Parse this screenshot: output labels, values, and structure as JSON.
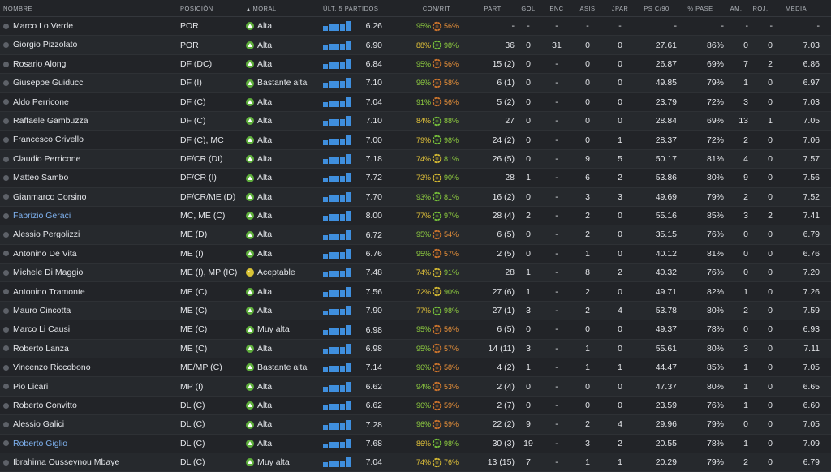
{
  "colors": {
    "accent_link": "#7fb2f0",
    "bar_blue": "#3f8fde",
    "morale_green": "#5fb03c",
    "morale_yellow": "#d8c335",
    "condition_green": "#8fcc40",
    "condition_yellow": "#e1c23a",
    "fitness_orange": "#e8913a",
    "ring_green": "#78c43a",
    "ring_yellow": "#d9bd32",
    "ring_orange": "#d2772c"
  },
  "table": {
    "headers": {
      "nombre": "NOMBRE",
      "posicion": "POSICIÓN",
      "moral": "MORAL",
      "ultimos": "ÚLT. 5 PARTIDOS",
      "conrit": "CON/RIT",
      "part": "PART",
      "gol": "GOL",
      "enc": "ENC",
      "asis": "ASIS",
      "jpar": "JPAR",
      "psc90": "PS C/90",
      "pase": "% PASE",
      "am": "AM.",
      "roj": "ROJ.",
      "media": "MEDIA"
    },
    "sort_icon": "sort-ascending-icon",
    "rows": [
      {
        "name": "Marco Lo Verde",
        "pos": "POR",
        "moral": "Alta",
        "moral_color": "green",
        "form": [
          0.5,
          0.7,
          0.7,
          0.7,
          1.0
        ],
        "avg": "6.26",
        "cond": "95%",
        "cond_c": "g",
        "fit": "56%",
        "fit_c": "o",
        "ring": "orange",
        "part": "-",
        "gol": "-",
        "enc": "-",
        "asis": "-",
        "jpar": "-",
        "ps": "-",
        "pase": "-",
        "am": "-",
        "roj": "-",
        "media": "-",
        "link": false
      },
      {
        "name": "Giorgio Pizzolato",
        "pos": "POR",
        "moral": "Alta",
        "moral_color": "green",
        "form": [
          0.5,
          0.7,
          0.7,
          0.7,
          1.0
        ],
        "avg": "6.90",
        "cond": "88%",
        "cond_c": "y",
        "fit": "98%",
        "fit_c": "g",
        "ring": "green",
        "part": "36",
        "gol": "0",
        "enc": "31",
        "asis": "0",
        "jpar": "0",
        "ps": "27.61",
        "pase": "86%",
        "am": "0",
        "roj": "0",
        "media": "7.03",
        "link": false
      },
      {
        "name": "Rosario Alongi",
        "pos": "DF (DC)",
        "moral": "Alta",
        "moral_color": "green",
        "form": [
          0.5,
          0.7,
          0.7,
          0.7,
          1.0
        ],
        "avg": "6.84",
        "cond": "95%",
        "cond_c": "g",
        "fit": "56%",
        "fit_c": "o",
        "ring": "orange",
        "part": "15 (2)",
        "gol": "0",
        "enc": "-",
        "asis": "0",
        "jpar": "0",
        "ps": "26.87",
        "pase": "69%",
        "am": "7",
        "roj": "2",
        "media": "6.86",
        "link": false
      },
      {
        "name": "Giuseppe Guiducci",
        "pos": "DF (I)",
        "moral": "Bastante alta",
        "moral_color": "green",
        "form": [
          0.5,
          0.7,
          0.7,
          0.7,
          1.0
        ],
        "avg": "7.10",
        "cond": "96%",
        "cond_c": "g",
        "fit": "58%",
        "fit_c": "o",
        "ring": "orange",
        "part": "6 (1)",
        "gol": "0",
        "enc": "-",
        "asis": "0",
        "jpar": "0",
        "ps": "49.85",
        "pase": "79%",
        "am": "1",
        "roj": "0",
        "media": "6.97",
        "link": false
      },
      {
        "name": "Aldo Perricone",
        "pos": "DF (C)",
        "moral": "Alta",
        "moral_color": "green",
        "form": [
          0.5,
          0.7,
          0.7,
          0.7,
          1.0
        ],
        "avg": "7.04",
        "cond": "91%",
        "cond_c": "g",
        "fit": "56%",
        "fit_c": "o",
        "ring": "orange",
        "part": "5 (2)",
        "gol": "0",
        "enc": "-",
        "asis": "0",
        "jpar": "0",
        "ps": "23.79",
        "pase": "72%",
        "am": "3",
        "roj": "0",
        "media": "7.03",
        "link": false
      },
      {
        "name": "Raffaele Gambuzza",
        "pos": "DF (C)",
        "moral": "Alta",
        "moral_color": "green",
        "form": [
          0.5,
          0.7,
          0.7,
          0.7,
          1.0
        ],
        "avg": "7.10",
        "cond": "84%",
        "cond_c": "y",
        "fit": "88%",
        "fit_c": "g",
        "ring": "green",
        "part": "27",
        "gol": "0",
        "enc": "-",
        "asis": "0",
        "jpar": "0",
        "ps": "28.84",
        "pase": "69%",
        "am": "13",
        "roj": "1",
        "media": "7.05",
        "link": false
      },
      {
        "name": "Francesco Crivello",
        "pos": "DF (C), MC",
        "moral": "Alta",
        "moral_color": "green",
        "form": [
          0.5,
          0.7,
          0.7,
          0.7,
          1.0
        ],
        "avg": "7.00",
        "cond": "79%",
        "cond_c": "y",
        "fit": "98%",
        "fit_c": "g",
        "ring": "green",
        "part": "24 (2)",
        "gol": "0",
        "enc": "-",
        "asis": "0",
        "jpar": "1",
        "ps": "28.37",
        "pase": "72%",
        "am": "2",
        "roj": "0",
        "media": "7.06",
        "link": false
      },
      {
        "name": "Claudio Perricone",
        "pos": "DF/CR (DI)",
        "moral": "Alta",
        "moral_color": "green",
        "form": [
          0.5,
          0.7,
          0.7,
          0.7,
          1.0
        ],
        "avg": "7.18",
        "cond": "74%",
        "cond_c": "y",
        "fit": "81%",
        "fit_c": "g",
        "ring": "yellow",
        "part": "26 (5)",
        "gol": "0",
        "enc": "-",
        "asis": "9",
        "jpar": "5",
        "ps": "50.17",
        "pase": "81%",
        "am": "4",
        "roj": "0",
        "media": "7.57",
        "link": false
      },
      {
        "name": "Matteo Sambo",
        "pos": "DF/CR (I)",
        "moral": "Alta",
        "moral_color": "green",
        "form": [
          0.5,
          0.7,
          0.7,
          0.7,
          1.0
        ],
        "avg": "7.72",
        "cond": "73%",
        "cond_c": "y",
        "fit": "90%",
        "fit_c": "g",
        "ring": "yellow",
        "part": "28",
        "gol": "1",
        "enc": "-",
        "asis": "6",
        "jpar": "2",
        "ps": "53.86",
        "pase": "80%",
        "am": "9",
        "roj": "0",
        "media": "7.56",
        "link": false
      },
      {
        "name": "Gianmarco Corsino",
        "pos": "DF/CR/ME (D)",
        "moral": "Alta",
        "moral_color": "green",
        "form": [
          0.5,
          0.7,
          0.7,
          0.7,
          1.0
        ],
        "avg": "7.70",
        "cond": "93%",
        "cond_c": "g",
        "fit": "81%",
        "fit_c": "g",
        "ring": "green",
        "part": "16 (2)",
        "gol": "0",
        "enc": "-",
        "asis": "3",
        "jpar": "3",
        "ps": "49.69",
        "pase": "79%",
        "am": "2",
        "roj": "0",
        "media": "7.52",
        "link": false
      },
      {
        "name": "Fabrizio Geraci",
        "pos": "MC, ME (C)",
        "moral": "Alta",
        "moral_color": "green",
        "form": [
          0.5,
          0.7,
          0.7,
          0.7,
          1.0
        ],
        "avg": "8.00",
        "cond": "77%",
        "cond_c": "y",
        "fit": "97%",
        "fit_c": "g",
        "ring": "green",
        "part": "28 (4)",
        "gol": "2",
        "enc": "-",
        "asis": "2",
        "jpar": "0",
        "ps": "55.16",
        "pase": "85%",
        "am": "3",
        "roj": "2",
        "media": "7.41",
        "link": true
      },
      {
        "name": "Alessio Pergolizzi",
        "pos": "ME (D)",
        "moral": "Alta",
        "moral_color": "green",
        "form": [
          0.5,
          0.7,
          0.7,
          0.7,
          1.0
        ],
        "avg": "6.72",
        "cond": "95%",
        "cond_c": "g",
        "fit": "54%",
        "fit_c": "o",
        "ring": "orange",
        "part": "6 (5)",
        "gol": "0",
        "enc": "-",
        "asis": "2",
        "jpar": "0",
        "ps": "35.15",
        "pase": "76%",
        "am": "0",
        "roj": "0",
        "media": "6.79",
        "link": false
      },
      {
        "name": "Antonino De Vita",
        "pos": "ME (I)",
        "moral": "Alta",
        "moral_color": "green",
        "form": [
          0.5,
          0.7,
          0.7,
          0.7,
          1.0
        ],
        "avg": "6.76",
        "cond": "95%",
        "cond_c": "g",
        "fit": "57%",
        "fit_c": "o",
        "ring": "orange",
        "part": "2 (5)",
        "gol": "0",
        "enc": "-",
        "asis": "1",
        "jpar": "0",
        "ps": "40.12",
        "pase": "81%",
        "am": "0",
        "roj": "0",
        "media": "6.76",
        "link": false
      },
      {
        "name": "Michele Di Maggio",
        "pos": "ME (I), MP (IC)",
        "moral": "Aceptable",
        "moral_color": "yellow",
        "form": [
          0.5,
          0.7,
          0.7,
          0.7,
          1.0
        ],
        "avg": "7.48",
        "cond": "74%",
        "cond_c": "y",
        "fit": "91%",
        "fit_c": "g",
        "ring": "yellow",
        "part": "28",
        "gol": "1",
        "enc": "-",
        "asis": "8",
        "jpar": "2",
        "ps": "40.32",
        "pase": "76%",
        "am": "0",
        "roj": "0",
        "media": "7.20",
        "link": false
      },
      {
        "name": "Antonino Tramonte",
        "pos": "ME (C)",
        "moral": "Alta",
        "moral_color": "green",
        "form": [
          0.5,
          0.7,
          0.7,
          0.7,
          1.0
        ],
        "avg": "7.56",
        "cond": "72%",
        "cond_c": "y",
        "fit": "90%",
        "fit_c": "g",
        "ring": "yellow",
        "part": "27 (6)",
        "gol": "1",
        "enc": "-",
        "asis": "2",
        "jpar": "0",
        "ps": "49.71",
        "pase": "82%",
        "am": "1",
        "roj": "0",
        "media": "7.26",
        "link": false
      },
      {
        "name": "Mauro Cincotta",
        "pos": "ME (C)",
        "moral": "Alta",
        "moral_color": "green",
        "form": [
          0.5,
          0.7,
          0.7,
          0.7,
          1.0
        ],
        "avg": "7.90",
        "cond": "77%",
        "cond_c": "y",
        "fit": "98%",
        "fit_c": "g",
        "ring": "green",
        "part": "27 (1)",
        "gol": "3",
        "enc": "-",
        "asis": "2",
        "jpar": "4",
        "ps": "53.78",
        "pase": "80%",
        "am": "2",
        "roj": "0",
        "media": "7.59",
        "link": false
      },
      {
        "name": "Marco Li Causi",
        "pos": "ME (C)",
        "moral": "Muy alta",
        "moral_color": "green",
        "form": [
          0.5,
          0.7,
          0.7,
          0.7,
          1.0
        ],
        "avg": "6.98",
        "cond": "95%",
        "cond_c": "g",
        "fit": "56%",
        "fit_c": "o",
        "ring": "orange",
        "part": "6 (5)",
        "gol": "0",
        "enc": "-",
        "asis": "0",
        "jpar": "0",
        "ps": "49.37",
        "pase": "78%",
        "am": "0",
        "roj": "0",
        "media": "6.93",
        "link": false
      },
      {
        "name": "Roberto Lanza",
        "pos": "ME (C)",
        "moral": "Alta",
        "moral_color": "green",
        "form": [
          0.5,
          0.7,
          0.7,
          0.7,
          1.0
        ],
        "avg": "6.98",
        "cond": "95%",
        "cond_c": "g",
        "fit": "57%",
        "fit_c": "o",
        "ring": "orange",
        "part": "14 (11)",
        "gol": "3",
        "enc": "-",
        "asis": "1",
        "jpar": "0",
        "ps": "55.61",
        "pase": "80%",
        "am": "3",
        "roj": "0",
        "media": "7.11",
        "link": false
      },
      {
        "name": "Vincenzo Riccobono",
        "pos": "ME/MP (C)",
        "moral": "Bastante alta",
        "moral_color": "green",
        "form": [
          0.5,
          0.7,
          0.7,
          0.7,
          1.0
        ],
        "avg": "7.14",
        "cond": "96%",
        "cond_c": "g",
        "fit": "58%",
        "fit_c": "o",
        "ring": "orange",
        "part": "4 (2)",
        "gol": "1",
        "enc": "-",
        "asis": "1",
        "jpar": "1",
        "ps": "44.47",
        "pase": "85%",
        "am": "1",
        "roj": "0",
        "media": "7.05",
        "link": false
      },
      {
        "name": "Pio Licari",
        "pos": "MP (I)",
        "moral": "Alta",
        "moral_color": "green",
        "form": [
          0.5,
          0.7,
          0.7,
          0.7,
          1.0
        ],
        "avg": "6.62",
        "cond": "94%",
        "cond_c": "g",
        "fit": "53%",
        "fit_c": "o",
        "ring": "orange",
        "part": "2 (4)",
        "gol": "0",
        "enc": "-",
        "asis": "0",
        "jpar": "0",
        "ps": "47.37",
        "pase": "80%",
        "am": "1",
        "roj": "0",
        "media": "6.65",
        "link": false
      },
      {
        "name": "Roberto Convitto",
        "pos": "DL (C)",
        "moral": "Alta",
        "moral_color": "green",
        "form": [
          0.5,
          0.7,
          0.7,
          0.7,
          1.0
        ],
        "avg": "6.62",
        "cond": "96%",
        "cond_c": "g",
        "fit": "59%",
        "fit_c": "o",
        "ring": "orange",
        "part": "2 (7)",
        "gol": "0",
        "enc": "-",
        "asis": "0",
        "jpar": "0",
        "ps": "23.59",
        "pase": "76%",
        "am": "1",
        "roj": "0",
        "media": "6.60",
        "link": false
      },
      {
        "name": "Alessio Galici",
        "pos": "DL (C)",
        "moral": "Alta",
        "moral_color": "green",
        "form": [
          0.5,
          0.7,
          0.7,
          0.7,
          1.0
        ],
        "avg": "7.28",
        "cond": "96%",
        "cond_c": "g",
        "fit": "59%",
        "fit_c": "o",
        "ring": "orange",
        "part": "22 (2)",
        "gol": "9",
        "enc": "-",
        "asis": "2",
        "jpar": "4",
        "ps": "29.96",
        "pase": "79%",
        "am": "0",
        "roj": "0",
        "media": "7.05",
        "link": false
      },
      {
        "name": "Roberto Giglio",
        "pos": "DL (C)",
        "moral": "Alta",
        "moral_color": "green",
        "form": [
          0.5,
          0.7,
          0.7,
          0.7,
          1.0
        ],
        "avg": "7.68",
        "cond": "86%",
        "cond_c": "y",
        "fit": "98%",
        "fit_c": "g",
        "ring": "green",
        "part": "30 (3)",
        "gol": "19",
        "enc": "-",
        "asis": "3",
        "jpar": "2",
        "ps": "20.55",
        "pase": "78%",
        "am": "1",
        "roj": "0",
        "media": "7.09",
        "link": true
      },
      {
        "name": "Ibrahima Ousseynou Mbaye",
        "pos": "DL (C)",
        "moral": "Muy alta",
        "moral_color": "green",
        "form": [
          0.5,
          0.7,
          0.7,
          0.7,
          1.0
        ],
        "avg": "7.04",
        "cond": "74%",
        "cond_c": "y",
        "fit": "76%",
        "fit_c": "y",
        "ring": "yellow",
        "part": "13 (15)",
        "gol": "7",
        "enc": "-",
        "asis": "1",
        "jpar": "1",
        "ps": "20.29",
        "pase": "79%",
        "am": "2",
        "roj": "0",
        "media": "6.79",
        "link": false
      }
    ]
  }
}
